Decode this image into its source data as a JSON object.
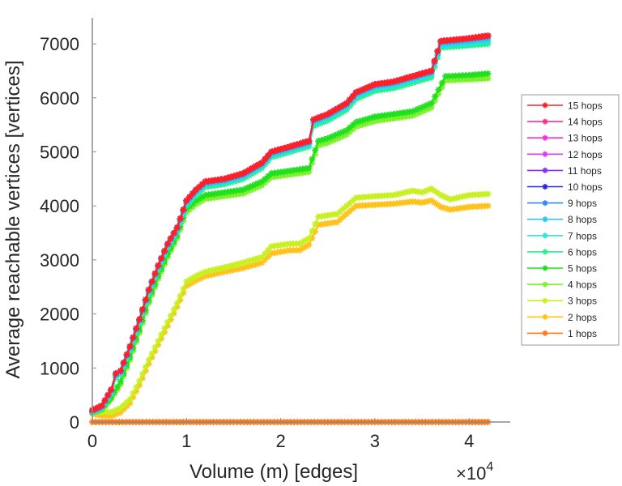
{
  "chart_data": {
    "type": "line",
    "title": "",
    "xlabel": "Volume (m) [edges]",
    "ylabel": "Average reachable vertices [vertices]",
    "x_multiplier_label": "×10",
    "x_multiplier_exp": "4",
    "xlim": [
      0,
      4.4
    ],
    "ylim": [
      0,
      7480
    ],
    "xticks": [
      0,
      1,
      2,
      3,
      4
    ],
    "xtick_labels": [
      "0",
      "1",
      "2",
      "3",
      "4"
    ],
    "yticks": [
      0,
      1000,
      2000,
      3000,
      4000,
      5000,
      6000,
      7000
    ],
    "ytick_labels": [
      "0",
      "1000",
      "2000",
      "3000",
      "4000",
      "5000",
      "6000",
      "7000"
    ],
    "grid": false,
    "legend_position": "right",
    "marker": "asterisk",
    "series": [
      {
        "name": "15 hops",
        "color": "#ff2020",
        "offset": 0,
        "x": [
          0,
          0.1,
          0.2,
          0.25,
          0.3,
          0.4,
          0.5,
          0.6,
          0.7,
          0.8,
          0.9,
          1.0,
          1.1,
          1.2,
          1.4,
          1.6,
          1.8,
          1.9,
          2.1,
          2.3,
          2.35,
          2.5,
          2.7,
          2.8,
          3.0,
          3.2,
          3.4,
          3.6,
          3.7,
          4.0,
          4.2
        ],
        "y": [
          220,
          300,
          600,
          900,
          950,
          1400,
          1900,
          2450,
          2900,
          3300,
          3600,
          4100,
          4300,
          4450,
          4500,
          4600,
          4800,
          5000,
          5100,
          5200,
          5600,
          5700,
          5900,
          6100,
          6250,
          6300,
          6400,
          6500,
          7050,
          7100,
          7150
        ]
      },
      {
        "name": "14 hops",
        "color": "#ff2f8a",
        "offset": 0,
        "x": [
          0,
          0.1,
          0.2,
          0.25,
          0.3,
          0.4,
          0.5,
          0.6,
          0.7,
          0.8,
          0.9,
          1.0,
          1.1,
          1.2,
          1.4,
          1.6,
          1.8,
          1.9,
          2.1,
          2.3,
          2.35,
          2.5,
          2.7,
          2.8,
          3.0,
          3.2,
          3.4,
          3.6,
          3.7,
          4.0,
          4.2
        ],
        "y": [
          220,
          300,
          600,
          900,
          950,
          1400,
          1900,
          2450,
          2900,
          3300,
          3600,
          4100,
          4300,
          4450,
          4500,
          4600,
          4800,
          5000,
          5100,
          5200,
          5600,
          5700,
          5900,
          6100,
          6250,
          6300,
          6400,
          6500,
          7050,
          7100,
          7150
        ]
      },
      {
        "name": "13 hops",
        "color": "#ff29e0",
        "offset": 0,
        "x": [
          0,
          0.1,
          0.2,
          0.25,
          0.3,
          0.4,
          0.5,
          0.6,
          0.7,
          0.8,
          0.9,
          1.0,
          1.1,
          1.2,
          1.4,
          1.6,
          1.8,
          1.9,
          2.1,
          2.3,
          2.35,
          2.5,
          2.7,
          2.8,
          3.0,
          3.2,
          3.4,
          3.6,
          3.7,
          4.0,
          4.2
        ],
        "y": [
          220,
          300,
          600,
          900,
          950,
          1400,
          1900,
          2450,
          2900,
          3300,
          3600,
          4100,
          4300,
          4450,
          4500,
          4600,
          4800,
          5000,
          5100,
          5200,
          5600,
          5700,
          5900,
          6100,
          6250,
          6300,
          6400,
          6500,
          7050,
          7100,
          7150
        ]
      },
      {
        "name": "12 hops",
        "color": "#d43cff",
        "offset": 0,
        "x": [
          0,
          0.1,
          0.2,
          0.25,
          0.3,
          0.4,
          0.5,
          0.6,
          0.7,
          0.8,
          0.9,
          1.0,
          1.1,
          1.2,
          1.4,
          1.6,
          1.8,
          1.9,
          2.1,
          2.3,
          2.35,
          2.5,
          2.7,
          2.8,
          3.0,
          3.2,
          3.4,
          3.6,
          3.7,
          4.0,
          4.2
        ],
        "y": [
          220,
          300,
          600,
          900,
          950,
          1400,
          1900,
          2450,
          2900,
          3300,
          3600,
          4100,
          4300,
          4450,
          4500,
          4600,
          4800,
          5000,
          5100,
          5200,
          5600,
          5700,
          5900,
          6100,
          6250,
          6300,
          6400,
          6500,
          7050,
          7100,
          7150
        ]
      },
      {
        "name": "11 hops",
        "color": "#8a2cff",
        "offset": 0,
        "x": [
          0,
          0.1,
          0.2,
          0.25,
          0.3,
          0.4,
          0.5,
          0.6,
          0.7,
          0.8,
          0.9,
          1.0,
          1.1,
          1.2,
          1.4,
          1.6,
          1.8,
          1.9,
          2.1,
          2.3,
          2.35,
          2.5,
          2.7,
          2.8,
          3.0,
          3.2,
          3.4,
          3.6,
          3.7,
          4.0,
          4.2
        ],
        "y": [
          220,
          300,
          600,
          900,
          950,
          1400,
          1900,
          2450,
          2900,
          3300,
          3600,
          4100,
          4300,
          4450,
          4500,
          4600,
          4800,
          5000,
          5100,
          5200,
          5600,
          5700,
          5900,
          6100,
          6250,
          6300,
          6400,
          6500,
          7050,
          7100,
          7150
        ]
      },
      {
        "name": "10 hops",
        "color": "#2424ee",
        "offset": 0,
        "x": [
          0,
          0.1,
          0.2,
          0.25,
          0.3,
          0.4,
          0.5,
          0.6,
          0.7,
          0.8,
          0.9,
          1.0,
          1.1,
          1.2,
          1.4,
          1.6,
          1.8,
          1.9,
          2.1,
          2.3,
          2.35,
          2.5,
          2.7,
          2.8,
          3.0,
          3.2,
          3.4,
          3.6,
          3.7,
          4.0,
          4.2
        ],
        "y": [
          220,
          300,
          600,
          900,
          950,
          1400,
          1900,
          2450,
          2900,
          3300,
          3600,
          4100,
          4300,
          4450,
          4500,
          4600,
          4800,
          5000,
          5100,
          5200,
          5600,
          5700,
          5900,
          6100,
          6250,
          6300,
          6400,
          6500,
          7050,
          7100,
          7150
        ]
      },
      {
        "name": "9 hops",
        "color": "#2f86ff",
        "offset": 0,
        "x": [
          0,
          0.1,
          0.2,
          0.25,
          0.3,
          0.4,
          0.5,
          0.6,
          0.7,
          0.8,
          0.9,
          1.0,
          1.1,
          1.2,
          1.4,
          1.6,
          1.8,
          1.9,
          2.1,
          2.3,
          2.35,
          2.5,
          2.7,
          2.8,
          3.0,
          3.2,
          3.4,
          3.6,
          3.7,
          4.0,
          4.2
        ],
        "y": [
          210,
          290,
          590,
          890,
          940,
          1390,
          1890,
          2440,
          2890,
          3290,
          3590,
          4090,
          4290,
          4440,
          4490,
          4590,
          4790,
          4990,
          5090,
          5190,
          5590,
          5690,
          5890,
          6090,
          6240,
          6290,
          6390,
          6490,
          7040,
          7090,
          7140
        ]
      },
      {
        "name": "8 hops",
        "color": "#22c8ff",
        "offset": 0,
        "x": [
          0,
          0.1,
          0.2,
          0.25,
          0.3,
          0.4,
          0.5,
          0.6,
          0.7,
          0.8,
          0.9,
          1.0,
          1.1,
          1.2,
          1.4,
          1.6,
          1.8,
          1.9,
          2.1,
          2.3,
          2.35,
          2.5,
          2.7,
          2.8,
          3.0,
          3.2,
          3.4,
          3.6,
          3.7,
          4.0,
          4.2
        ],
        "y": [
          200,
          280,
          570,
          870,
          920,
          1370,
          1870,
          2420,
          2870,
          3270,
          3570,
          4060,
          4260,
          4410,
          4460,
          4560,
          4760,
          4960,
          5060,
          5160,
          5560,
          5660,
          5860,
          6060,
          6210,
          6260,
          6360,
          6460,
          7000,
          7050,
          7090
        ]
      },
      {
        "name": "7 hops",
        "color": "#28e6d8",
        "offset": 0,
        "x": [
          0,
          0.1,
          0.2,
          0.25,
          0.3,
          0.4,
          0.5,
          0.6,
          0.7,
          0.8,
          0.9,
          1.0,
          1.1,
          1.2,
          1.4,
          1.6,
          1.8,
          1.9,
          2.1,
          2.3,
          2.35,
          2.5,
          2.7,
          2.8,
          3.0,
          3.2,
          3.4,
          3.6,
          3.7,
          4.0,
          4.2
        ],
        "y": [
          190,
          270,
          550,
          850,
          900,
          1350,
          1850,
          2400,
          2850,
          3250,
          3550,
          4040,
          4240,
          4390,
          4440,
          4540,
          4740,
          4940,
          5040,
          5140,
          5530,
          5630,
          5830,
          6030,
          6180,
          6230,
          6330,
          6430,
          6970,
          7010,
          7050
        ]
      },
      {
        "name": "6 hops",
        "color": "#25f08c",
        "offset": 0,
        "x": [
          0,
          0.1,
          0.2,
          0.25,
          0.3,
          0.4,
          0.5,
          0.6,
          0.7,
          0.8,
          0.9,
          1.0,
          1.1,
          1.2,
          1.4,
          1.6,
          1.8,
          1.9,
          2.1,
          2.3,
          2.35,
          2.5,
          2.7,
          2.8,
          3.0,
          3.2,
          3.4,
          3.6,
          3.7,
          4.0,
          4.2
        ],
        "y": [
          180,
          250,
          520,
          820,
          870,
          1320,
          1820,
          2370,
          2820,
          3220,
          3520,
          4000,
          4200,
          4350,
          4400,
          4500,
          4700,
          4900,
          5000,
          5100,
          5480,
          5580,
          5780,
          5980,
          6130,
          6180,
          6280,
          6380,
          6930,
          6970,
          7000
        ]
      },
      {
        "name": "5 hops",
        "color": "#1ee01e",
        "offset": 0,
        "x": [
          0,
          0.1,
          0.2,
          0.3,
          0.4,
          0.5,
          0.6,
          0.7,
          0.8,
          0.9,
          1.0,
          1.1,
          1.2,
          1.4,
          1.6,
          1.8,
          1.9,
          2.1,
          2.3,
          2.4,
          2.5,
          2.7,
          2.8,
          3.0,
          3.2,
          3.4,
          3.6,
          3.75,
          4.0,
          4.2
        ],
        "y": [
          180,
          240,
          450,
          750,
          1200,
          1700,
          2250,
          2700,
          3100,
          3450,
          3950,
          4100,
          4200,
          4250,
          4300,
          4450,
          4600,
          4650,
          4700,
          5200,
          5250,
          5400,
          5550,
          5650,
          5700,
          5750,
          5900,
          6400,
          6420,
          6450
        ]
      },
      {
        "name": "4 hops",
        "color": "#7ef02a",
        "offset": 0,
        "x": [
          0,
          0.1,
          0.2,
          0.3,
          0.4,
          0.5,
          0.6,
          0.7,
          0.8,
          0.9,
          1.0,
          1.1,
          1.2,
          1.4,
          1.6,
          1.8,
          1.9,
          2.1,
          2.3,
          2.4,
          2.5,
          2.7,
          2.8,
          3.0,
          3.2,
          3.4,
          3.6,
          3.75,
          4.0,
          4.2
        ],
        "y": [
          170,
          220,
          420,
          700,
          1150,
          1650,
          2200,
          2650,
          3050,
          3400,
          3880,
          4030,
          4130,
          4180,
          4230,
          4380,
          4530,
          4580,
          4630,
          5120,
          5170,
          5320,
          5470,
          5570,
          5620,
          5670,
          5820,
          6320,
          6340,
          6360
        ]
      },
      {
        "name": "3 hops",
        "color": "#c8f020",
        "offset": 0,
        "x": [
          0,
          0.1,
          0.2,
          0.3,
          0.4,
          0.5,
          0.6,
          0.7,
          0.8,
          0.9,
          1.0,
          1.1,
          1.2,
          1.4,
          1.6,
          1.8,
          1.9,
          2.1,
          2.2,
          2.3,
          2.4,
          2.6,
          2.7,
          2.8,
          3.0,
          3.2,
          3.4,
          3.5,
          3.6,
          3.7,
          3.8,
          4.0,
          4.2
        ],
        "y": [
          200,
          190,
          180,
          260,
          420,
          760,
          1150,
          1500,
          1850,
          2200,
          2600,
          2700,
          2780,
          2860,
          2950,
          3050,
          3250,
          3300,
          3300,
          3400,
          3800,
          3850,
          4000,
          4150,
          4180,
          4200,
          4280,
          4250,
          4320,
          4200,
          4120,
          4200,
          4220
        ]
      },
      {
        "name": "2 hops",
        "color": "#ffc21a",
        "offset": 0,
        "x": [
          0,
          0.1,
          0.2,
          0.3,
          0.4,
          0.5,
          0.6,
          0.7,
          0.8,
          0.9,
          1.0,
          1.1,
          1.2,
          1.4,
          1.6,
          1.8,
          1.9,
          2.1,
          2.2,
          2.3,
          2.4,
          2.6,
          2.7,
          2.8,
          3.0,
          3.2,
          3.4,
          3.5,
          3.6,
          3.7,
          3.8,
          4.0,
          4.2
        ],
        "y": [
          150,
          120,
          110,
          180,
          350,
          680,
          1080,
          1430,
          1780,
          2130,
          2520,
          2620,
          2700,
          2780,
          2850,
          2950,
          3120,
          3180,
          3180,
          3280,
          3650,
          3700,
          3850,
          4000,
          4020,
          4040,
          4080,
          4060,
          4100,
          3980,
          3930,
          3980,
          4000
        ]
      },
      {
        "name": "1 hops",
        "color": "#ff7a14",
        "offset": 0,
        "x": [
          0,
          0.5,
          1.0,
          1.5,
          2.0,
          2.5,
          3.0,
          3.5,
          4.0,
          4.2
        ],
        "y": [
          0,
          0,
          0,
          0,
          0,
          0,
          0,
          0,
          0,
          0
        ]
      }
    ]
  }
}
